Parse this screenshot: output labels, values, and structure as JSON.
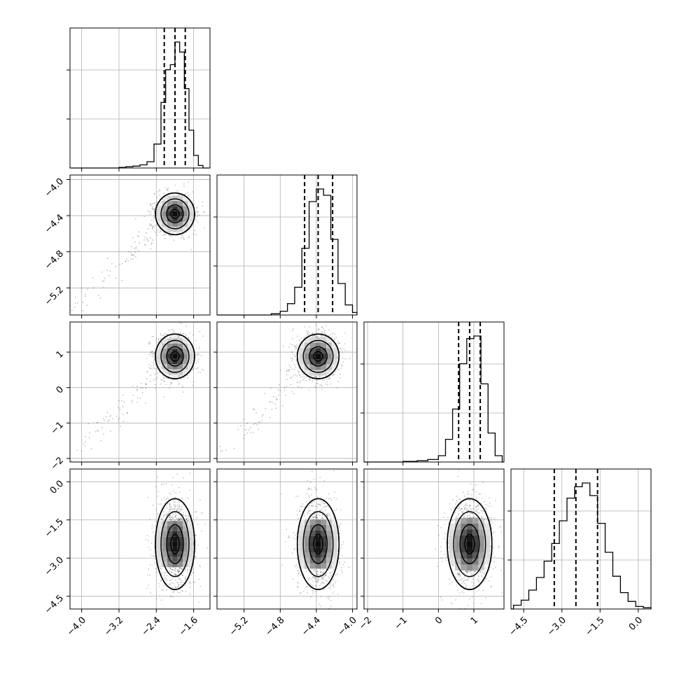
{
  "chart_data": {
    "type": "corner",
    "parameters": [
      {
        "index": 0,
        "range": [
          -4.25,
          -1.25
        ],
        "ticks": [
          "−4.0",
          "−3.2",
          "−2.4",
          "−1.6"
        ],
        "tick_values": [
          -4.0,
          -3.2,
          -2.4,
          -1.6
        ],
        "center": -2.0,
        "quantiles": [
          -2.23,
          -2.0,
          -1.78
        ],
        "sd": 0.2
      },
      {
        "index": 1,
        "range": [
          -5.5,
          -3.95
        ],
        "ticks": [
          "−5.2",
          "−4.8",
          "−4.4",
          "−4.0"
        ],
        "tick_values": [
          -5.2,
          -4.8,
          -4.4,
          -4.0
        ],
        "center": -4.38,
        "quantiles": [
          -4.53,
          -4.38,
          -4.22
        ],
        "sd": 0.11
      },
      {
        "index": 2,
        "range": [
          -2.1,
          1.85
        ],
        "ticks": [
          "−2",
          "−1",
          "0",
          "1"
        ],
        "tick_values": [
          -2,
          -1,
          0,
          1
        ],
        "center": 0.88,
        "quantiles": [
          0.57,
          0.88,
          1.18
        ],
        "sd": 0.3
      },
      {
        "index": 3,
        "range": [
          -5.0,
          0.5
        ],
        "ticks": [
          "−4.5",
          "−3.0",
          "−1.5",
          "0.0"
        ],
        "tick_values": [
          -4.5,
          -3.0,
          -1.5,
          0.0
        ],
        "center": -2.45,
        "quantiles": [
          -3.3,
          -2.45,
          -1.6
        ],
        "sd": 0.85
      }
    ],
    "histograms": [
      {
        "param": 0,
        "bins": [
          [
            -3.2,
            0.005
          ],
          [
            -3.05,
            0.01
          ],
          [
            -2.9,
            0.015
          ],
          [
            -2.75,
            0.025
          ],
          [
            -2.6,
            0.05
          ],
          [
            -2.45,
            0.19
          ],
          [
            -2.3,
            0.52
          ],
          [
            -2.2,
            0.78
          ],
          [
            -2.1,
            0.82
          ],
          [
            -2.0,
            1.0
          ],
          [
            -1.9,
            0.92
          ],
          [
            -1.8,
            0.63
          ],
          [
            -1.7,
            0.3
          ],
          [
            -1.6,
            0.1
          ],
          [
            -1.5,
            0.02
          ]
        ]
      },
      {
        "param": 1,
        "bins": [
          [
            -4.9,
            0.01
          ],
          [
            -4.8,
            0.03
          ],
          [
            -4.72,
            0.09
          ],
          [
            -4.64,
            0.22
          ],
          [
            -4.56,
            0.53
          ],
          [
            -4.48,
            0.9
          ],
          [
            -4.4,
            1.0
          ],
          [
            -4.32,
            0.95
          ],
          [
            -4.24,
            0.6
          ],
          [
            -4.16,
            0.25
          ],
          [
            -4.08,
            0.08
          ],
          [
            -4.0,
            0.02
          ]
        ]
      },
      {
        "param": 2,
        "bins": [
          [
            -1.0,
            0.005
          ],
          [
            -0.6,
            0.01
          ],
          [
            -0.3,
            0.02
          ],
          [
            0.0,
            0.05
          ],
          [
            0.2,
            0.18
          ],
          [
            0.4,
            0.42
          ],
          [
            0.6,
            0.78
          ],
          [
            0.8,
            0.98
          ],
          [
            1.0,
            1.0
          ],
          [
            1.2,
            0.62
          ],
          [
            1.4,
            0.23
          ],
          [
            1.6,
            0.05
          ]
        ]
      },
      {
        "param": 3,
        "bins": [
          [
            -4.9,
            0.03
          ],
          [
            -4.6,
            0.07
          ],
          [
            -4.3,
            0.15
          ],
          [
            -4.0,
            0.25
          ],
          [
            -3.7,
            0.38
          ],
          [
            -3.4,
            0.52
          ],
          [
            -3.1,
            0.7
          ],
          [
            -2.8,
            0.88
          ],
          [
            -2.5,
            0.97
          ],
          [
            -2.2,
            1.0
          ],
          [
            -1.9,
            0.9
          ],
          [
            -1.6,
            0.68
          ],
          [
            -1.3,
            0.45
          ],
          [
            -1.0,
            0.26
          ],
          [
            -0.7,
            0.13
          ],
          [
            -0.4,
            0.06
          ],
          [
            -0.1,
            0.02
          ],
          [
            0.2,
            0.01
          ]
        ]
      }
    ],
    "colors": {
      "line": "#000000",
      "grid": "#b0b0b0",
      "points": "#000000"
    }
  }
}
